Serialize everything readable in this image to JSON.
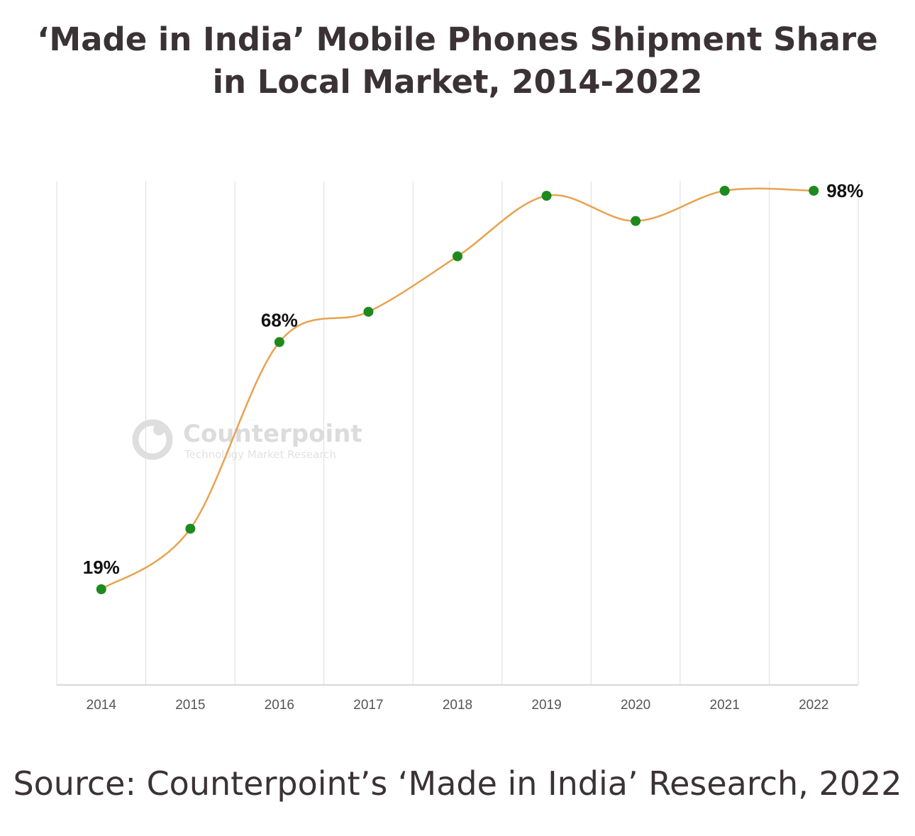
{
  "title": "‘Made in India’ Mobile Phones Shipment Share in Local Market, 2014-2022",
  "source": "Source: Counterpoint’s ‘Made in India’ Research, 2022",
  "watermark": {
    "name": "Counterpoint",
    "tagline": "Technology Market Research"
  },
  "colors": {
    "line": "#e9a24f",
    "marker": "#1e8a1e",
    "grid": "#dddddd",
    "axis": "#cccccc"
  },
  "chart_data": {
    "type": "line",
    "title": "‘Made in India’ Mobile Phones Shipment Share in Local Market, 2014-2022",
    "xlabel": "",
    "ylabel": "",
    "grid": "vertical",
    "x": [
      "2014",
      "2015",
      "2016",
      "2017",
      "2018",
      "2019",
      "2020",
      "2021",
      "2022"
    ],
    "series": [
      {
        "values": [
          19,
          31,
          68,
          74,
          85,
          97,
          92,
          98,
          98
        ]
      }
    ],
    "data_labels": [
      {
        "index": 0,
        "text": "19%"
      },
      {
        "index": 2,
        "text": "68%"
      },
      {
        "index": 8,
        "text": "98%"
      }
    ],
    "ylim": [
      0,
      100
    ]
  }
}
